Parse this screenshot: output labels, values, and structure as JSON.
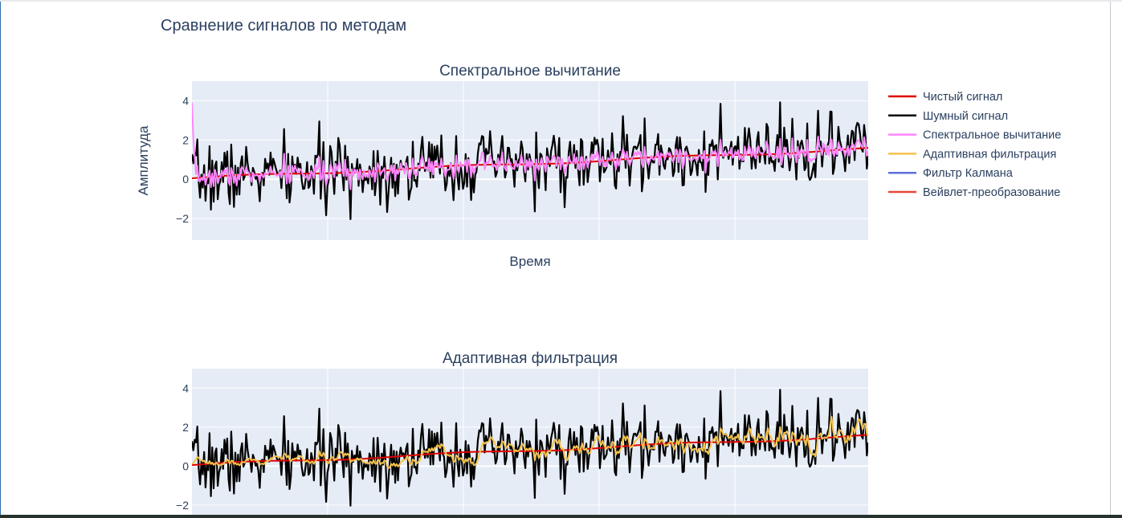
{
  "figure": {
    "title": "Сравнение сигналов по методам"
  },
  "legend": {
    "placement": "right",
    "items": [
      {
        "name": "Чистый сигнал",
        "color": "#e00000"
      },
      {
        "name": "Шумный сигнал",
        "color": "#000000"
      },
      {
        "name": "Спектральное вычитание",
        "color": "#ff85ff"
      },
      {
        "name": "Адаптивная фильтрация",
        "color": "#f5c24c"
      },
      {
        "name": "Фильтр Калмана",
        "color": "#5c6fe0"
      },
      {
        "name": "Вейвлет-преобразование",
        "color": "#e8483a"
      }
    ]
  },
  "chart_data": [
    {
      "type": "line",
      "title": "Спектральное вычитание",
      "xlabel": "Время",
      "ylabel": "Амплитуда",
      "ylim": [
        -3.1,
        5.0
      ],
      "yticks": [
        -2,
        0,
        2,
        4
      ],
      "ytick_labels": [
        "−2",
        "0",
        "2",
        "4"
      ],
      "grid": true,
      "n_points": 500,
      "series": [
        {
          "name": "Чистый сигнал",
          "trend": [
            0.0,
            1.6
          ]
        },
        {
          "name": "Шумный сигнал",
          "range": [
            -2.7,
            4.6
          ]
        },
        {
          "name": "Спектральное вычитание",
          "range": [
            -0.3,
            3.9
          ]
        }
      ]
    },
    {
      "type": "line",
      "title": "Адаптивная фильтрация",
      "xlabel": "",
      "ylabel": "",
      "ylim": [
        -2.5,
        5.0
      ],
      "yticks": [
        -2,
        0,
        2,
        4
      ],
      "ytick_labels": [
        "−2",
        "0",
        "2",
        "4"
      ],
      "grid": true,
      "n_points": 500,
      "series": [
        {
          "name": "Чистый сигнал",
          "trend": [
            0.0,
            1.6
          ]
        },
        {
          "name": "Шумный сигнал",
          "range": [
            -2.7,
            4.6
          ]
        },
        {
          "name": "Адаптивная фильтрация",
          "range": [
            -0.2,
            3.3
          ]
        }
      ]
    }
  ]
}
